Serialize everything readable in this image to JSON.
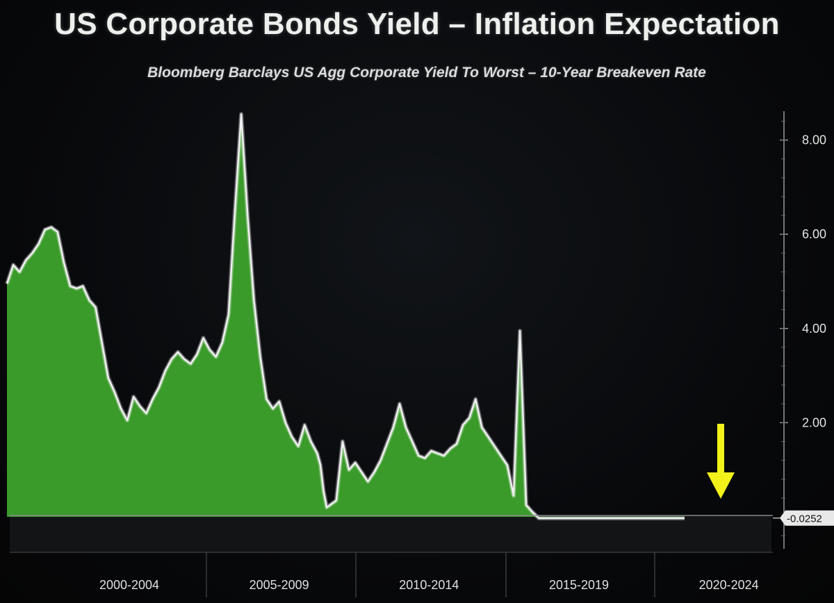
{
  "chart_data": {
    "type": "area",
    "title": "US Corporate Bonds Yield – Inflation Expectation",
    "subtitle": "Bloomberg Barclays US Agg Corporate Yield To Worst – 10-Year Breakeven Rate",
    "xlabel": "",
    "ylabel": "",
    "ylim": [
      -0.4,
      8.8
    ],
    "y_ticks": [
      2.0,
      4.0,
      6.0,
      8.0
    ],
    "y_tick_labels": [
      "2.00",
      "4.00",
      "6.00",
      "8.00"
    ],
    "x_range": [
      1999.0,
      2020.4
    ],
    "x_ticks": [
      2002.5,
      2007.5,
      2012.5,
      2017.5,
      2022.5
    ],
    "x_tick_labels": [
      "2000-2004",
      "2005-2009",
      "2010-2014",
      "2015-2019",
      "2020-2024"
    ],
    "grid": false,
    "last_value_label": "-0.0252",
    "annotations": [
      {
        "type": "arrow",
        "direction": "down",
        "color": "#f2f21a",
        "x": 2021.3
      }
    ],
    "colors": {
      "fill": "#3a9a2a",
      "line": "#f0f0f0",
      "background": "#070708",
      "arrow": "#f2f21a",
      "axis": "#9a9a9a"
    },
    "series": [
      {
        "x": [
          1999.0,
          1999.2,
          1999.4,
          1999.6,
          1999.8,
          2000.0,
          2000.2,
          2000.4,
          2000.6,
          2000.8,
          2001.0,
          2001.2,
          2001.4,
          2001.6,
          2001.8,
          2002.0,
          2002.2,
          2002.4,
          2002.6,
          2002.8,
          2003.0,
          2003.2,
          2003.4,
          2003.6,
          2003.8,
          2004.0,
          2004.2,
          2004.4,
          2004.6,
          2004.8,
          2005.0,
          2005.2,
          2005.4,
          2005.6,
          2005.8,
          2006.0,
          2006.2,
          2006.4,
          2006.6,
          2006.8,
          2007.0,
          2007.2,
          2007.4,
          2007.6,
          2007.8,
          2008.0,
          2008.2,
          2008.4,
          2008.6,
          2008.8,
          2008.9,
          2009.0,
          2009.1,
          2009.2,
          2009.3,
          2009.4,
          2009.6,
          2009.8,
          2010.0,
          2010.2,
          2010.4,
          2010.6,
          2010.8,
          2011.0,
          2011.2,
          2011.4,
          2011.6,
          2011.8,
          2012.0,
          2012.2,
          2012.4,
          2012.6,
          2012.8,
          2013.0,
          2013.2,
          2013.4,
          2013.6,
          2013.8,
          2014.0,
          2014.2,
          2014.4,
          2014.6,
          2014.8,
          2015.0,
          2015.2,
          2015.4,
          2015.6,
          2015.8,
          2016.0,
          2016.2,
          2016.4,
          2016.6,
          2016.8,
          2017.0,
          2017.2,
          2017.4,
          2017.6,
          2017.8,
          2018.0,
          2018.2,
          2018.4,
          2018.6,
          2018.8,
          2019.0,
          2019.2,
          2019.4,
          2019.6,
          2019.7,
          2019.75,
          2019.8,
          2019.9,
          2020.0,
          2020.2,
          2020.4
        ],
        "values": [
          4.95,
          5.35,
          5.2,
          5.45,
          5.6,
          5.8,
          6.1,
          6.15,
          6.05,
          5.4,
          4.9,
          4.85,
          4.9,
          4.6,
          4.45,
          3.7,
          2.95,
          2.65,
          2.3,
          2.05,
          2.55,
          2.35,
          2.2,
          2.5,
          2.75,
          3.1,
          3.35,
          3.5,
          3.35,
          3.25,
          3.45,
          3.8,
          3.55,
          3.4,
          3.7,
          4.3,
          6.5,
          8.55,
          6.4,
          4.6,
          3.4,
          2.5,
          2.3,
          2.45,
          2.0,
          1.7,
          1.5,
          1.95,
          1.6,
          1.35,
          1.1,
          0.55,
          0.2,
          0.25,
          0.3,
          0.35,
          1.6,
          1.0,
          1.15,
          0.95,
          0.75,
          0.95,
          1.2,
          1.55,
          1.9,
          2.4,
          1.9,
          1.6,
          1.3,
          1.25,
          1.4,
          1.35,
          1.3,
          1.45,
          1.55,
          1.95,
          2.1,
          2.5,
          1.9,
          1.7,
          1.5,
          1.3,
          1.1,
          0.45,
          3.95,
          0.25,
          0.1,
          -0.03,
          -0.03,
          -0.03,
          -0.03,
          -0.03,
          -0.03,
          -0.03,
          -0.03,
          -0.03,
          -0.03,
          -0.03,
          -0.03,
          -0.03,
          -0.03,
          -0.03,
          -0.03,
          -0.03,
          -0.03,
          -0.03,
          -0.03,
          -0.03,
          -0.03,
          -0.03,
          -0.03,
          -0.03,
          -0.03,
          -0.03
        ]
      }
    ]
  }
}
